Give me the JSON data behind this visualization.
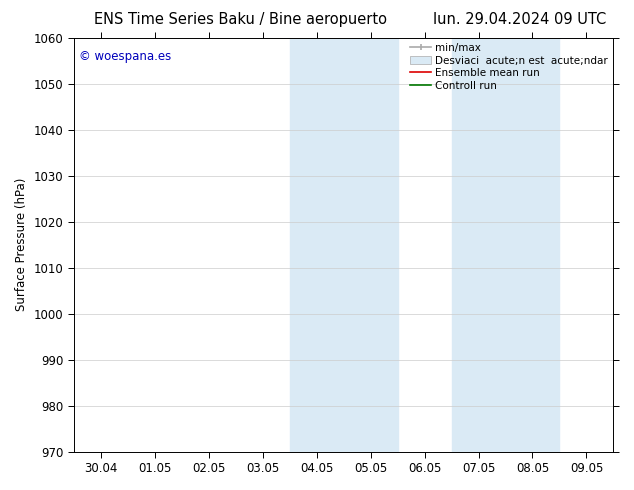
{
  "title_left": "ENS Time Series Baku / Bine aeropuerto",
  "title_right": "lun. 29.04.2024 09 UTC",
  "ylabel": "Surface Pressure (hPa)",
  "ylim": [
    970,
    1060
  ],
  "yticks": [
    970,
    980,
    990,
    1000,
    1010,
    1020,
    1030,
    1040,
    1050,
    1060
  ],
  "xlabel_ticks": [
    "30.04",
    "01.05",
    "02.05",
    "03.05",
    "04.05",
    "05.05",
    "06.05",
    "07.05",
    "08.05",
    "09.05"
  ],
  "watermark": "© woespana.es",
  "watermark_color": "#0000bb",
  "background_color": "#ffffff",
  "shaded_regions": [
    {
      "xstart": 3.5,
      "xend": 4.5,
      "color": "#daeaf5"
    },
    {
      "xstart": 4.5,
      "xend": 5.5,
      "color": "#daeaf5"
    },
    {
      "xstart": 6.5,
      "xend": 7.5,
      "color": "#daeaf5"
    },
    {
      "xstart": 7.5,
      "xend": 8.5,
      "color": "#daeaf5"
    }
  ],
  "grid_color": "#cccccc",
  "title_fontsize": 10.5,
  "tick_fontsize": 8.5,
  "ylabel_fontsize": 8.5,
  "legend_fontsize": 7.5
}
